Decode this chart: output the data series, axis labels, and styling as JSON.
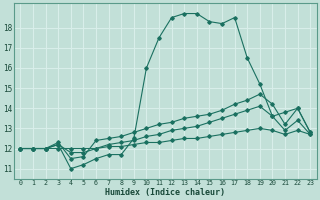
{
  "title": "",
  "xlabel": "Humidex (Indice chaleur)",
  "x_ticks": [
    0,
    1,
    2,
    3,
    4,
    5,
    6,
    7,
    8,
    9,
    10,
    11,
    12,
    13,
    14,
    15,
    16,
    17,
    18,
    19,
    20,
    21,
    22,
    23
  ],
  "y_ticks": [
    11,
    12,
    13,
    14,
    15,
    16,
    17,
    18
  ],
  "xlim": [
    -0.5,
    23.5
  ],
  "ylim": [
    10.5,
    19.2
  ],
  "bg_color": "#c2e0d8",
  "line_color": "#1a7060",
  "grid_color": "#d8eeea",
  "series": [
    {
      "x": [
        0,
        1,
        2,
        3,
        4,
        5,
        6,
        7,
        8,
        9,
        10,
        11,
        12,
        13,
        14,
        15,
        16,
        17,
        18,
        19,
        20,
        21,
        22,
        23
      ],
      "y": [
        12.0,
        12.0,
        12.0,
        12.2,
        11.0,
        11.2,
        11.5,
        11.7,
        11.7,
        12.5,
        16.0,
        17.5,
        18.5,
        18.7,
        18.7,
        18.3,
        18.2,
        18.5,
        16.5,
        15.2,
        13.6,
        13.8,
        14.0,
        12.8
      ]
    },
    {
      "x": [
        0,
        1,
        2,
        3,
        4,
        5,
        6,
        7,
        8,
        9,
        10,
        11,
        12,
        13,
        14,
        15,
        16,
        17,
        18,
        19,
        20,
        21,
        22,
        23
      ],
      "y": [
        12.0,
        12.0,
        12.0,
        12.3,
        11.5,
        11.6,
        12.4,
        12.5,
        12.6,
        12.8,
        13.0,
        13.2,
        13.3,
        13.5,
        13.6,
        13.7,
        13.9,
        14.2,
        14.4,
        14.7,
        14.2,
        13.2,
        14.0,
        12.8
      ]
    },
    {
      "x": [
        0,
        1,
        2,
        3,
        4,
        5,
        6,
        7,
        8,
        9,
        10,
        11,
        12,
        13,
        14,
        15,
        16,
        17,
        18,
        19,
        20,
        21,
        22,
        23
      ],
      "y": [
        12.0,
        12.0,
        12.0,
        12.2,
        11.8,
        11.8,
        12.0,
        12.2,
        12.3,
        12.4,
        12.6,
        12.7,
        12.9,
        13.0,
        13.1,
        13.3,
        13.5,
        13.7,
        13.9,
        14.1,
        13.6,
        12.9,
        13.4,
        12.7
      ]
    },
    {
      "x": [
        0,
        1,
        2,
        3,
        4,
        5,
        6,
        7,
        8,
        9,
        10,
        11,
        12,
        13,
        14,
        15,
        16,
        17,
        18,
        19,
        20,
        21,
        22,
        23
      ],
      "y": [
        12.0,
        12.0,
        12.0,
        12.0,
        12.0,
        12.0,
        12.0,
        12.1,
        12.1,
        12.2,
        12.3,
        12.3,
        12.4,
        12.5,
        12.5,
        12.6,
        12.7,
        12.8,
        12.9,
        13.0,
        12.9,
        12.7,
        12.9,
        12.7
      ]
    }
  ]
}
